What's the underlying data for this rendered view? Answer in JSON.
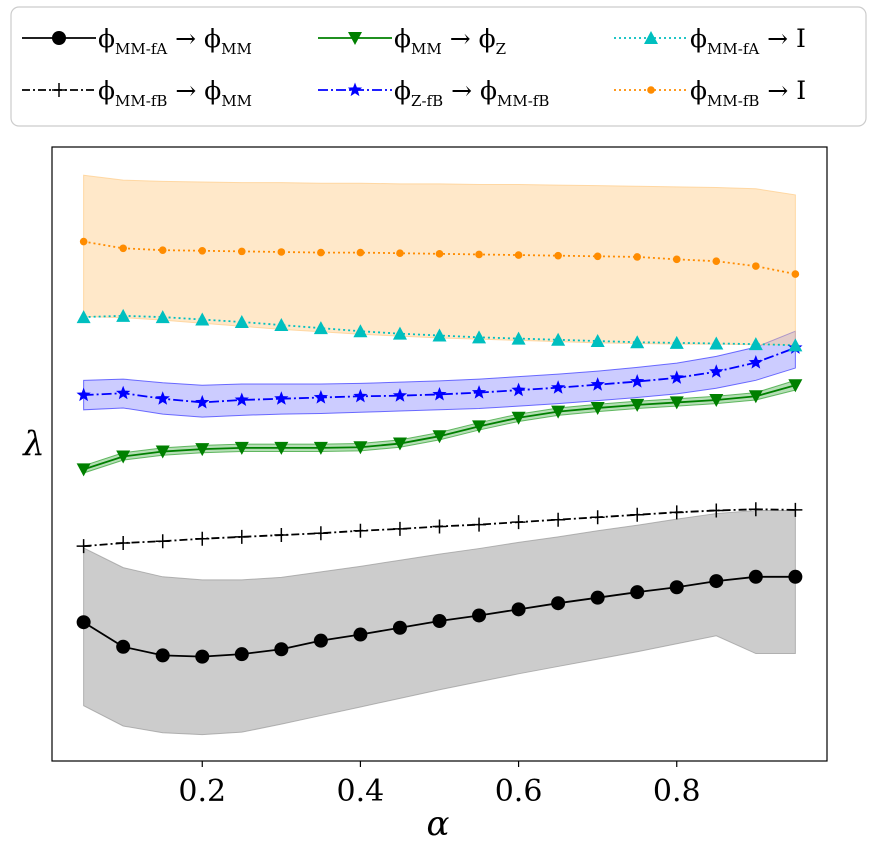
{
  "chart_data": {
    "type": "line",
    "xlabel": "α",
    "ylabel": "λ",
    "xlim": [
      0.01,
      0.99
    ],
    "ylim": [
      0,
      1
    ],
    "y_ticks_shown": false,
    "x_ticks": [
      "0.2",
      "0.4",
      "0.6",
      "0.8"
    ],
    "legend_position": "top-outside",
    "x": [
      0.05,
      0.1,
      0.15,
      0.2,
      0.25,
      0.3,
      0.35,
      0.4,
      0.45,
      0.5,
      0.55,
      0.6,
      0.65,
      0.7,
      0.75,
      0.8,
      0.85,
      0.9,
      0.95
    ],
    "series": [
      {
        "name": "φMM-fA → φMM",
        "label": {
          "base": "ϕ",
          "sub": "MM-fA",
          "arrow": " → ",
          "tgt": "ϕ",
          "tsub": "MM"
        },
        "color": "#000000",
        "dash": "",
        "marker": "circle",
        "values": [
          0.226,
          0.186,
          0.172,
          0.17,
          0.174,
          0.182,
          0.196,
          0.206,
          0.217,
          0.228,
          0.237,
          0.247,
          0.257,
          0.266,
          0.275,
          0.283,
          0.293,
          0.3,
          0.3
        ],
        "band": {
          "upper": [
            0.347,
            0.315,
            0.3,
            0.295,
            0.295,
            0.299,
            0.308,
            0.317,
            0.327,
            0.337,
            0.346,
            0.356,
            0.365,
            0.375,
            0.384,
            0.394,
            0.403,
            0.408,
            0.408
          ],
          "lower": [
            0.09,
            0.057,
            0.046,
            0.043,
            0.047,
            0.06,
            0.074,
            0.088,
            0.102,
            0.116,
            0.129,
            0.142,
            0.154,
            0.166,
            0.178,
            0.191,
            0.204,
            0.175,
            0.175
          ],
          "color": "#999999",
          "opacity": 0.5
        }
      },
      {
        "name": "φMM-fB → φMM",
        "label": {
          "base": "ϕ",
          "sub": "MM-fB",
          "arrow": " → ",
          "tgt": "ϕ",
          "tsub": "MM"
        },
        "color": "#000000",
        "dash": "8,3,2,3",
        "marker": "plus",
        "values": [
          0.35,
          0.355,
          0.358,
          0.362,
          0.365,
          0.368,
          0.371,
          0.375,
          0.378,
          0.382,
          0.385,
          0.389,
          0.393,
          0.397,
          0.401,
          0.405,
          0.408,
          0.41,
          0.409
        ]
      },
      {
        "name": "φMM → φZ",
        "label": {
          "base": "ϕ",
          "sub": "MM",
          "arrow": " → ",
          "tgt": "ϕ",
          "tsub": "Z"
        },
        "color": "#008000",
        "dash": "",
        "marker": "triangle-down",
        "values": [
          0.475,
          0.496,
          0.504,
          0.508,
          0.51,
          0.51,
          0.51,
          0.511,
          0.517,
          0.529,
          0.545,
          0.559,
          0.569,
          0.575,
          0.58,
          0.584,
          0.588,
          0.594,
          0.612
        ],
        "band": {
          "upper": [
            0.481,
            0.502,
            0.51,
            0.514,
            0.516,
            0.516,
            0.516,
            0.517,
            0.523,
            0.535,
            0.551,
            0.565,
            0.575,
            0.581,
            0.586,
            0.59,
            0.594,
            0.6,
            0.62
          ],
          "lower": [
            0.469,
            0.49,
            0.498,
            0.502,
            0.504,
            0.504,
            0.504,
            0.505,
            0.511,
            0.523,
            0.539,
            0.553,
            0.563,
            0.569,
            0.574,
            0.578,
            0.582,
            0.588,
            0.604
          ],
          "color": "#2ca02c",
          "opacity": 0.35
        }
      },
      {
        "name": "φZ-fB → φMM-fB",
        "label": {
          "base": "ϕ",
          "sub": "Z-fB",
          "arrow": " → ",
          "tgt": "ϕ",
          "tsub": "MM-fB"
        },
        "color": "#0000ff",
        "dash": "10,3,2,3",
        "marker": "star",
        "values": [
          0.596,
          0.599,
          0.59,
          0.584,
          0.588,
          0.59,
          0.592,
          0.594,
          0.595,
          0.597,
          0.6,
          0.604,
          0.608,
          0.613,
          0.618,
          0.624,
          0.634,
          0.649,
          0.673
        ],
        "band": {
          "upper": [
            0.62,
            0.622,
            0.616,
            0.612,
            0.614,
            0.614,
            0.614,
            0.615,
            0.617,
            0.619,
            0.622,
            0.626,
            0.63,
            0.635,
            0.641,
            0.648,
            0.659,
            0.674,
            0.7
          ],
          "lower": [
            0.572,
            0.575,
            0.565,
            0.56,
            0.563,
            0.565,
            0.566,
            0.568,
            0.57,
            0.572,
            0.574,
            0.578,
            0.582,
            0.587,
            0.592,
            0.598,
            0.607,
            0.62,
            0.64
          ],
          "color": "#3333ff",
          "opacity": 0.25
        }
      },
      {
        "name": "φMM-fA → I",
        "label": {
          "base": "ϕ",
          "sub": "MM-fA",
          "arrow": " → ",
          "tgt": "I",
          "tsub": ""
        },
        "color": "#00bfbf",
        "dash": "2,3",
        "marker": "triangle-up",
        "values": [
          0.723,
          0.725,
          0.723,
          0.719,
          0.715,
          0.71,
          0.705,
          0.7,
          0.696,
          0.693,
          0.69,
          0.688,
          0.686,
          0.684,
          0.682,
          0.681,
          0.68,
          0.679,
          0.677
        ]
      },
      {
        "name": "φMM-fB → I",
        "label": {
          "base": "ϕ",
          "sub": "MM-fB",
          "arrow": " → ",
          "tgt": "I",
          "tsub": ""
        },
        "color": "#ff8c00",
        "dash": "2,3",
        "marker": "dot",
        "values": [
          0.846,
          0.835,
          0.832,
          0.831,
          0.83,
          0.829,
          0.828,
          0.828,
          0.827,
          0.826,
          0.825,
          0.824,
          0.823,
          0.822,
          0.821,
          0.817,
          0.814,
          0.806,
          0.793
        ],
        "band": {
          "upper": [
            0.954,
            0.946,
            0.944,
            0.943,
            0.942,
            0.942,
            0.941,
            0.941,
            0.94,
            0.94,
            0.939,
            0.939,
            0.938,
            0.937,
            0.936,
            0.935,
            0.934,
            0.932,
            0.922
          ],
          "lower": [
            0.724,
            0.722,
            0.718,
            0.713,
            0.708,
            0.703,
            0.699,
            0.695,
            0.692,
            0.689,
            0.687,
            0.685,
            0.683,
            0.681,
            0.68,
            0.679,
            0.679,
            0.678,
            0.678
          ],
          "color": "#ffcc88",
          "opacity": 0.45
        }
      }
    ]
  }
}
